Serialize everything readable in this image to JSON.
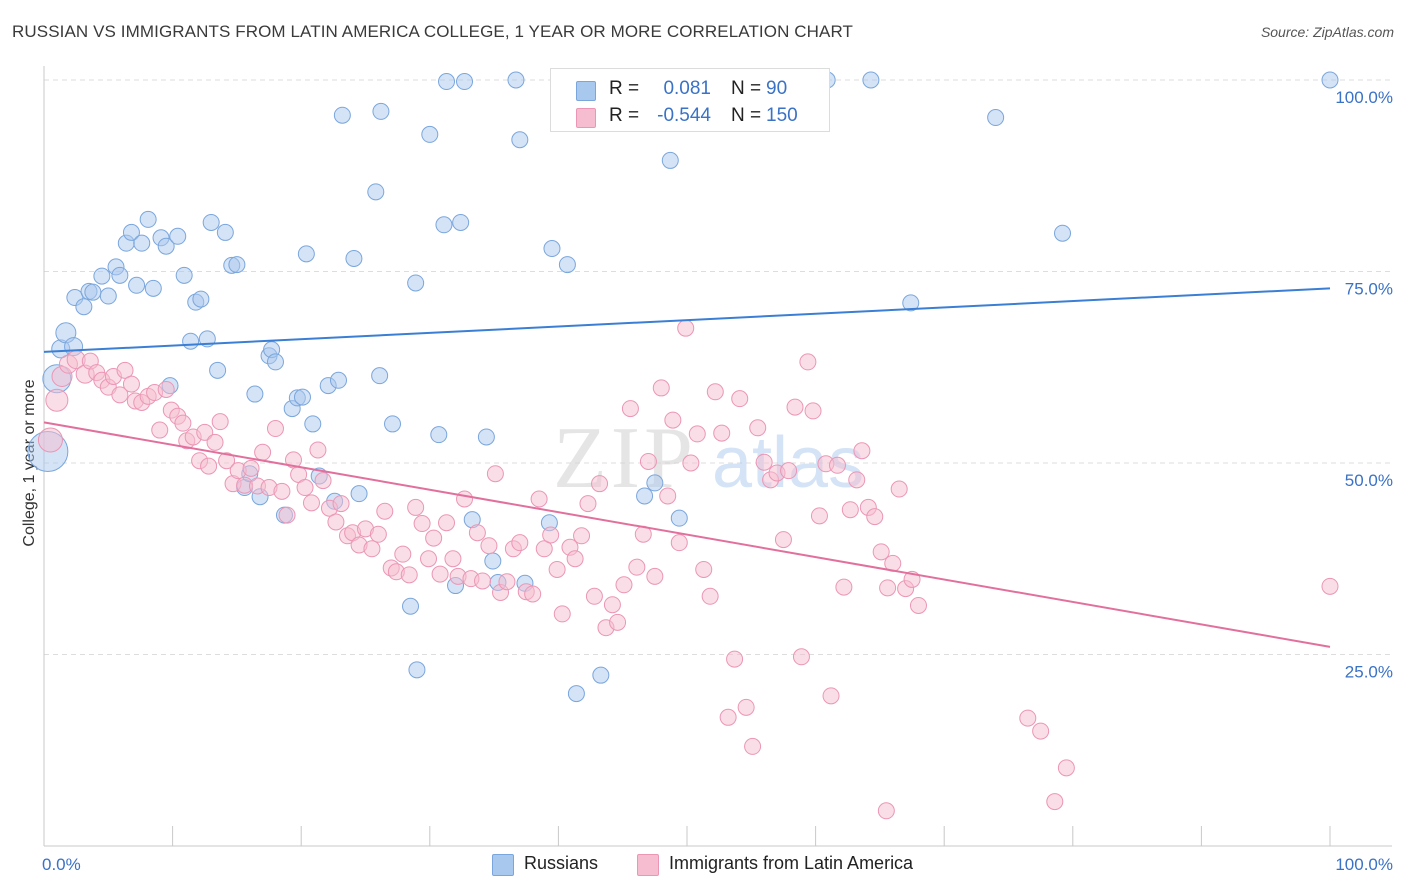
{
  "title": "RUSSIAN VS IMMIGRANTS FROM LATIN AMERICA COLLEGE, 1 YEAR OR MORE CORRELATION CHART",
  "source": "Source: ZipAtlas.com",
  "watermark": {
    "zip": "ZIP",
    "atlas": "atlas"
  },
  "legend": {
    "r_label": "R =",
    "n_label": "N =",
    "russians": {
      "r": "0.081",
      "n": "90"
    },
    "latin": {
      "r": "-0.544",
      "n": "150"
    }
  },
  "colors": {
    "blue_fill": "#a9c8ee",
    "blue_stroke": "#7aa6dc",
    "blue_line": "#3a7fd4",
    "pink_fill": "#f6bdd0",
    "pink_stroke": "#eb96b5",
    "pink_line": "#e2709c",
    "value_text": "#3a72c6",
    "grid": "#dddddd"
  },
  "chart_data": {
    "type": "scatter",
    "title": "RUSSIAN VS IMMIGRANTS FROM LATIN AMERICA COLLEGE, 1 YEAR OR MORE CORRELATION CHART",
    "xlabel": "",
    "ylabel": "College, 1 year or more",
    "xlim": [
      0,
      100
    ],
    "ylim": [
      0,
      100
    ],
    "x_tick_labels": [
      "0.0%",
      "100.0%"
    ],
    "y_tick_labels": [
      "25.0%",
      "50.0%",
      "75.0%",
      "100.0%"
    ],
    "y_ticks": [
      25,
      50,
      75,
      100
    ],
    "grid": true,
    "legend_position": "bottom",
    "series": [
      {
        "name": "Russians",
        "color": "#a9c8ee",
        "r": 0.081,
        "n": 90,
        "trend": {
          "x0": 0,
          "y0": 64.5,
          "x1": 100,
          "y1": 72.8
        },
        "points": [
          [
            0.3,
            51.5,
            20
          ],
          [
            1.0,
            61.0,
            14
          ],
          [
            1.3,
            64.9,
            9
          ],
          [
            1.7,
            67.0,
            10
          ],
          [
            2.3,
            65.2,
            9
          ],
          [
            2.4,
            71.6,
            8
          ],
          [
            3.1,
            70.4,
            8
          ],
          [
            3.5,
            72.4,
            8
          ],
          [
            3.8,
            72.3,
            8
          ],
          [
            4.5,
            74.4,
            8
          ],
          [
            5.0,
            71.8,
            8
          ],
          [
            5.6,
            75.6,
            8
          ],
          [
            5.9,
            74.5,
            8
          ],
          [
            6.4,
            78.7,
            8
          ],
          [
            6.8,
            80.1,
            8
          ],
          [
            7.2,
            73.2,
            8
          ],
          [
            7.6,
            78.7,
            8
          ],
          [
            8.1,
            81.8,
            8
          ],
          [
            8.5,
            72.8,
            8
          ],
          [
            9.1,
            79.4,
            8
          ],
          [
            9.5,
            78.3,
            8
          ],
          [
            9.8,
            60.1,
            8
          ],
          [
            10.4,
            79.6,
            8
          ],
          [
            10.9,
            74.5,
            8
          ],
          [
            11.4,
            65.9,
            8
          ],
          [
            11.8,
            71.0,
            8
          ],
          [
            12.2,
            71.4,
            8
          ],
          [
            12.7,
            66.2,
            8
          ],
          [
            13.0,
            81.4,
            8
          ],
          [
            13.5,
            62.1,
            8
          ],
          [
            14.1,
            80.1,
            8
          ],
          [
            14.6,
            75.8,
            8
          ],
          [
            15.0,
            75.9,
            8
          ],
          [
            15.6,
            46.8,
            8
          ],
          [
            16.0,
            48.6,
            8
          ],
          [
            16.4,
            59.0,
            8
          ],
          [
            16.8,
            45.6,
            8
          ],
          [
            17.5,
            64.0,
            8
          ],
          [
            17.7,
            64.8,
            8
          ],
          [
            18.0,
            63.2,
            8
          ],
          [
            18.7,
            43.2,
            8
          ],
          [
            19.3,
            57.1,
            8
          ],
          [
            19.7,
            58.5,
            8
          ],
          [
            20.1,
            58.6,
            8
          ],
          [
            20.4,
            77.3,
            8
          ],
          [
            20.9,
            55.1,
            8
          ],
          [
            21.4,
            48.3,
            8
          ],
          [
            22.1,
            60.1,
            8
          ],
          [
            22.6,
            45.0,
            8
          ],
          [
            22.9,
            60.8,
            8
          ],
          [
            23.2,
            95.4,
            8
          ],
          [
            24.1,
            76.7,
            8
          ],
          [
            24.5,
            46.0,
            8
          ],
          [
            25.8,
            85.4,
            8
          ],
          [
            26.1,
            61.4,
            8
          ],
          [
            26.2,
            95.9,
            8
          ],
          [
            27.1,
            55.1,
            8
          ],
          [
            28.5,
            31.3,
            8
          ],
          [
            28.9,
            73.5,
            8
          ],
          [
            29.0,
            23.0,
            8
          ],
          [
            30.0,
            92.9,
            8
          ],
          [
            30.7,
            53.7,
            8
          ],
          [
            31.1,
            81.1,
            8
          ],
          [
            31.3,
            99.8,
            8
          ],
          [
            32.0,
            34.0,
            8
          ],
          [
            32.4,
            81.4,
            8
          ],
          [
            32.7,
            99.8,
            8
          ],
          [
            33.3,
            42.6,
            8
          ],
          [
            34.4,
            53.4,
            8
          ],
          [
            34.9,
            37.2,
            8
          ],
          [
            35.3,
            34.4,
            8
          ],
          [
            37.0,
            92.2,
            8
          ],
          [
            37.4,
            34.3,
            8
          ],
          [
            39.3,
            42.2,
            8
          ],
          [
            39.5,
            78.0,
            8
          ],
          [
            40.7,
            75.9,
            8
          ],
          [
            41.4,
            19.9,
            8
          ],
          [
            43.3,
            22.3,
            8
          ],
          [
            46.7,
            45.7,
            8
          ],
          [
            47.5,
            47.4,
            8
          ],
          [
            48.7,
            89.5,
            8
          ],
          [
            49.4,
            42.8,
            8
          ],
          [
            60.9,
            100,
            8
          ],
          [
            64.3,
            100,
            8
          ],
          [
            67.4,
            70.9,
            8
          ],
          [
            74.0,
            95.1,
            8
          ],
          [
            79.2,
            80.0,
            8
          ],
          [
            100,
            100,
            8
          ],
          [
            50.1,
            100,
            8
          ],
          [
            36.7,
            100,
            8
          ]
        ]
      },
      {
        "name": "Immigrants from Latin America",
        "color": "#f6bdd0",
        "r": -0.544,
        "n": 150,
        "trend": {
          "x0": 0,
          "y0": 55.3,
          "x1": 100,
          "y1": 26.0
        },
        "points": [
          [
            0.5,
            53.0,
            12
          ],
          [
            1.0,
            58.2,
            11
          ],
          [
            1.4,
            61.3,
            10
          ],
          [
            1.9,
            62.9,
            9
          ],
          [
            2.5,
            63.5,
            9
          ],
          [
            3.2,
            61.6,
            9
          ],
          [
            3.6,
            63.3,
            8
          ],
          [
            4.1,
            61.8,
            8
          ],
          [
            4.5,
            60.8,
            8
          ],
          [
            5.0,
            59.9,
            8
          ],
          [
            5.4,
            61.3,
            8
          ],
          [
            5.9,
            58.9,
            8
          ],
          [
            6.3,
            62.1,
            8
          ],
          [
            6.8,
            60.3,
            8
          ],
          [
            7.1,
            58.1,
            8
          ],
          [
            7.6,
            57.9,
            8
          ],
          [
            8.1,
            58.7,
            8
          ],
          [
            8.6,
            59.2,
            8
          ],
          [
            9.0,
            54.3,
            8
          ],
          [
            9.5,
            59.6,
            8
          ],
          [
            9.9,
            56.9,
            8
          ],
          [
            10.4,
            56.1,
            8
          ],
          [
            10.8,
            55.2,
            8
          ],
          [
            11.1,
            52.9,
            8
          ],
          [
            11.6,
            53.4,
            8
          ],
          [
            12.1,
            50.3,
            8
          ],
          [
            12.5,
            54.0,
            8
          ],
          [
            12.8,
            49.6,
            8
          ],
          [
            13.3,
            52.7,
            8
          ],
          [
            13.7,
            55.4,
            8
          ],
          [
            14.2,
            50.3,
            8
          ],
          [
            14.7,
            47.3,
            8
          ],
          [
            15.1,
            49.0,
            8
          ],
          [
            15.6,
            47.1,
            8
          ],
          [
            16.1,
            49.3,
            8
          ],
          [
            16.6,
            47.0,
            8
          ],
          [
            17.0,
            51.4,
            8
          ],
          [
            17.5,
            46.8,
            8
          ],
          [
            18.0,
            54.5,
            8
          ],
          [
            18.5,
            46.3,
            8
          ],
          [
            18.9,
            43.2,
            8
          ],
          [
            19.4,
            50.4,
            8
          ],
          [
            19.8,
            48.5,
            8
          ],
          [
            20.3,
            46.8,
            8
          ],
          [
            20.8,
            44.8,
            8
          ],
          [
            21.3,
            51.7,
            8
          ],
          [
            21.7,
            47.7,
            8
          ],
          [
            22.2,
            44.1,
            8
          ],
          [
            22.7,
            42.3,
            8
          ],
          [
            23.1,
            44.7,
            8
          ],
          [
            23.6,
            40.5,
            8
          ],
          [
            24.0,
            40.9,
            8
          ],
          [
            24.5,
            39.3,
            8
          ],
          [
            25.0,
            41.4,
            8
          ],
          [
            25.5,
            38.8,
            8
          ],
          [
            26.0,
            40.7,
            8
          ],
          [
            26.5,
            43.7,
            8
          ],
          [
            27.0,
            36.3,
            8
          ],
          [
            27.4,
            35.8,
            8
          ],
          [
            27.9,
            38.1,
            8
          ],
          [
            28.4,
            35.4,
            8
          ],
          [
            28.9,
            44.2,
            8
          ],
          [
            29.4,
            42.1,
            8
          ],
          [
            29.9,
            37.5,
            8
          ],
          [
            30.3,
            40.2,
            8
          ],
          [
            30.8,
            35.5,
            8
          ],
          [
            31.3,
            42.2,
            8
          ],
          [
            31.8,
            37.5,
            8
          ],
          [
            32.2,
            35.2,
            8
          ],
          [
            32.7,
            45.3,
            8
          ],
          [
            33.2,
            34.9,
            8
          ],
          [
            33.7,
            40.9,
            8
          ],
          [
            34.1,
            34.6,
            8
          ],
          [
            34.6,
            39.2,
            8
          ],
          [
            35.1,
            48.6,
            8
          ],
          [
            35.5,
            33.1,
            8
          ],
          [
            36.0,
            34.5,
            8
          ],
          [
            36.5,
            38.8,
            8
          ],
          [
            37.0,
            39.6,
            8
          ],
          [
            37.5,
            33.2,
            8
          ],
          [
            38.0,
            32.9,
            8
          ],
          [
            38.5,
            45.3,
            8
          ],
          [
            38.9,
            38.8,
            8
          ],
          [
            39.4,
            40.6,
            8
          ],
          [
            39.9,
            36.1,
            8
          ],
          [
            40.3,
            30.3,
            8
          ],
          [
            40.9,
            39.0,
            8
          ],
          [
            41.3,
            37.5,
            8
          ],
          [
            41.8,
            40.5,
            8
          ],
          [
            42.3,
            44.7,
            8
          ],
          [
            42.8,
            32.6,
            8
          ],
          [
            43.2,
            47.3,
            8
          ],
          [
            43.7,
            28.5,
            8
          ],
          [
            44.2,
            31.5,
            8
          ],
          [
            44.6,
            29.2,
            8
          ],
          [
            45.1,
            34.1,
            8
          ],
          [
            45.6,
            57.1,
            8
          ],
          [
            46.1,
            36.4,
            8
          ],
          [
            46.6,
            40.7,
            8
          ],
          [
            47.0,
            50.2,
            8
          ],
          [
            47.5,
            35.2,
            8
          ],
          [
            48.0,
            59.8,
            8
          ],
          [
            48.5,
            45.7,
            8
          ],
          [
            48.9,
            55.6,
            8
          ],
          [
            49.4,
            39.6,
            8
          ],
          [
            49.9,
            67.6,
            8
          ],
          [
            50.3,
            50.0,
            8
          ],
          [
            50.8,
            53.8,
            8
          ],
          [
            51.3,
            36.1,
            8
          ],
          [
            51.8,
            32.6,
            8
          ],
          [
            52.2,
            59.3,
            8
          ],
          [
            52.7,
            53.9,
            8
          ],
          [
            53.2,
            16.8,
            8
          ],
          [
            53.7,
            24.4,
            8
          ],
          [
            54.1,
            58.4,
            8
          ],
          [
            54.6,
            18.1,
            8
          ],
          [
            55.1,
            13.0,
            8
          ],
          [
            55.5,
            54.6,
            8
          ],
          [
            56.0,
            50.1,
            8
          ],
          [
            56.5,
            47.8,
            8
          ],
          [
            57.0,
            48.7,
            8
          ],
          [
            57.5,
            40.0,
            8
          ],
          [
            57.9,
            49.0,
            8
          ],
          [
            58.4,
            57.3,
            8
          ],
          [
            58.9,
            24.7,
            8
          ],
          [
            59.4,
            63.2,
            8
          ],
          [
            59.8,
            56.8,
            8
          ],
          [
            60.3,
            43.1,
            8
          ],
          [
            60.8,
            49.9,
            8
          ],
          [
            61.2,
            19.6,
            8
          ],
          [
            61.7,
            49.7,
            8
          ],
          [
            62.2,
            33.8,
            8
          ],
          [
            62.7,
            43.9,
            8
          ],
          [
            63.2,
            47.8,
            8
          ],
          [
            63.6,
            51.6,
            8
          ],
          [
            64.1,
            44.2,
            8
          ],
          [
            64.6,
            43.0,
            8
          ],
          [
            65.1,
            38.4,
            8
          ],
          [
            65.6,
            33.7,
            8
          ],
          [
            66.0,
            36.9,
            8
          ],
          [
            66.5,
            46.6,
            8
          ],
          [
            67.0,
            33.6,
            8
          ],
          [
            67.5,
            34.8,
            8
          ],
          [
            68.0,
            31.4,
            8
          ],
          [
            76.5,
            16.7,
            8
          ],
          [
            77.5,
            15.0,
            8
          ],
          [
            78.6,
            5.8,
            8
          ],
          [
            79.5,
            10.2,
            8
          ],
          [
            100,
            33.9,
            8
          ],
          [
            65.5,
            4.6,
            8
          ]
        ]
      }
    ]
  }
}
